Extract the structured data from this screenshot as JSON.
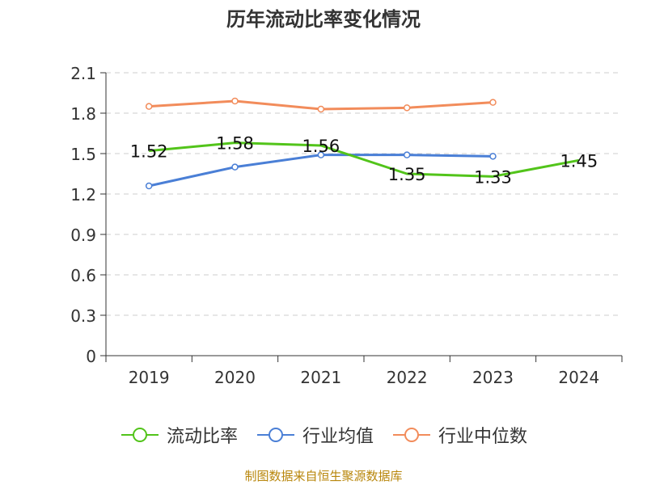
{
  "chart_data": {
    "type": "line",
    "title": "历年流动比率变化情况",
    "categories": [
      "2019",
      "2020",
      "2021",
      "2022",
      "2023",
      "2024"
    ],
    "ylim": [
      0,
      2.1
    ],
    "yticks": [
      "0",
      "0.3",
      "0.6",
      "0.9",
      "1.2",
      "1.5",
      "1.8",
      "2.1"
    ],
    "grid": true,
    "legend_position": "bottom",
    "series": [
      {
        "name": "流动比率",
        "color": "#52c41a",
        "values": [
          1.52,
          1.58,
          1.56,
          1.35,
          1.33,
          1.45
        ],
        "labels": [
          "1.52",
          "1.58",
          "1.56",
          "1.35",
          "1.33",
          "1.45"
        ]
      },
      {
        "name": "行业均值",
        "color": "#4a7fd6",
        "values": [
          1.26,
          1.4,
          1.49,
          1.49,
          1.48,
          null
        ]
      },
      {
        "name": "行业中位数",
        "color": "#f28c5b",
        "values": [
          1.85,
          1.89,
          1.83,
          1.84,
          1.88,
          null
        ]
      }
    ]
  },
  "source_text": "制图数据来自恒生聚源数据库"
}
